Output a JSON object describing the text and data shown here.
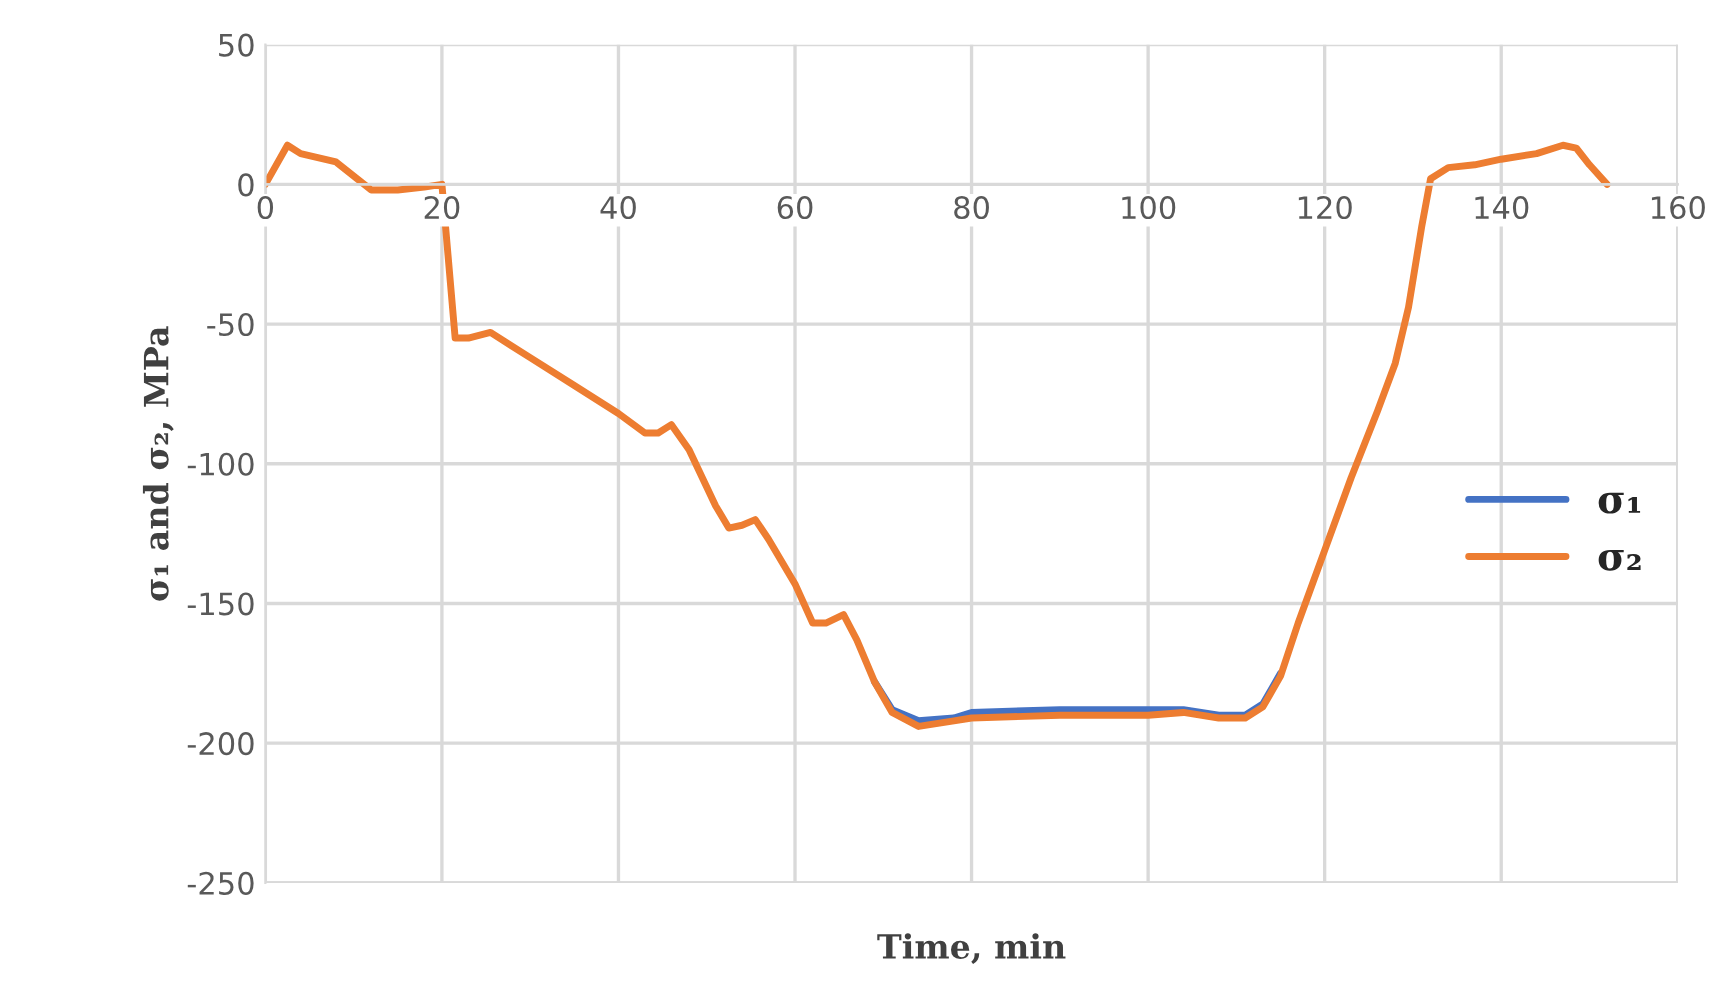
{
  "chart_data": {
    "type": "line",
    "xlabel": "Time, min",
    "ylabel": "σ₁ and σ₂, MPa",
    "xlim": [
      0,
      160
    ],
    "xticks": [
      0,
      20,
      40,
      60,
      80,
      100,
      120,
      140,
      160
    ],
    "ylim": [
      -250,
      50
    ],
    "yticks": [
      -250,
      -200,
      -150,
      -100,
      -50,
      0,
      50
    ],
    "grid": true,
    "legend": "right",
    "marker": "none",
    "line_style": "solid",
    "x": [
      0,
      2.5,
      4,
      8,
      12,
      15,
      18,
      20,
      21.5,
      23,
      25.5,
      30,
      35,
      40,
      43,
      44.5,
      46,
      48,
      51,
      52.5,
      54,
      55.5,
      57,
      60,
      62,
      63.5,
      65.5,
      67,
      69,
      71,
      74,
      78,
      80,
      90,
      100,
      104,
      108,
      111,
      113,
      115,
      117,
      120,
      123,
      126,
      128,
      129.5,
      131,
      132,
      134,
      137,
      140,
      144,
      147,
      148.5,
      150,
      152
    ],
    "series": [
      {
        "name": "σ₁",
        "color": "#4472c4",
        "values": [
          null,
          null,
          null,
          null,
          null,
          null,
          null,
          null,
          null,
          null,
          null,
          null,
          null,
          null,
          null,
          null,
          null,
          null,
          null,
          null,
          null,
          null,
          null,
          null,
          null,
          null,
          null,
          null,
          -178,
          -188,
          -192,
          -191,
          -189,
          -188,
          -188,
          -188,
          -190,
          -190,
          -186,
          -175,
          null,
          null,
          null,
          null,
          null,
          null,
          null,
          null,
          null,
          null,
          null,
          null,
          null,
          null,
          null,
          null
        ]
      },
      {
        "name": "σ₂",
        "color": "#ed7d31",
        "values": [
          0,
          14,
          11,
          8,
          -2,
          -2,
          -1,
          0,
          -55,
          -55,
          -53,
          -62,
          -72,
          -82,
          -89,
          -89,
          -86,
          -95,
          -115,
          -123,
          -122,
          -120,
          -127,
          -143,
          -157,
          -157,
          -154,
          -163,
          -178,
          -189,
          -194,
          -192,
          -191,
          -190,
          -190,
          -189,
          -191,
          -191,
          -187,
          -176,
          -157,
          -131,
          -105,
          -81,
          -64,
          -44,
          -15,
          2,
          6,
          7,
          9,
          11,
          14,
          13,
          7,
          0
        ]
      }
    ]
  }
}
